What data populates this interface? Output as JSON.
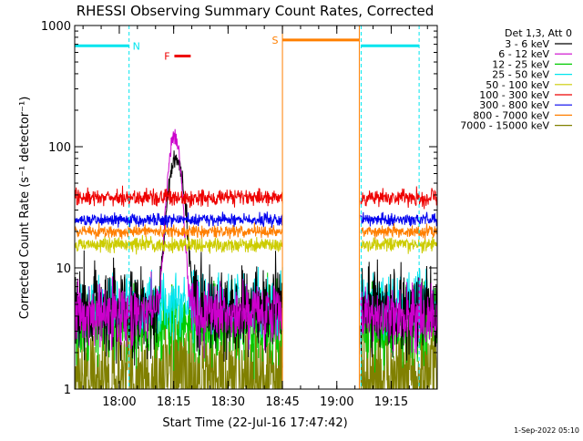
{
  "chart_data": {
    "type": "line",
    "title": "RHESSI Observing Summary Count Rates, Corrected",
    "xlabel": "Start Time (22-Jul-16 17:47:42)",
    "ylabel": "Corrected Count Rate (s⁻¹ detector⁻¹)",
    "yscale": "log",
    "ylim": [
      1,
      1000
    ],
    "xlim_minutes_after_start": [
      0,
      100
    ],
    "x_ticks": [
      "18:00",
      "18:15",
      "18:30",
      "18:45",
      "19:00",
      "19:15"
    ],
    "y_ticks": [
      "1",
      "10",
      "100",
      "1000"
    ],
    "grid": false,
    "legend_header": "Det 1,3, Att 0",
    "legend_position": "top-right",
    "footer_date": "1-Sep-2022 05:10",
    "gap_minutes": [
      [
        57.3,
        78.9
      ]
    ],
    "series": [
      {
        "name": "3 - 6 keV",
        "color": "#000000",
        "base": 4.5,
        "noise": 0.35,
        "peak": {
          "t": 28,
          "value": 80,
          "width": 2.5
        }
      },
      {
        "name": "6 - 12 keV",
        "color": "#cc00cc",
        "base": 4.2,
        "noise": 0.25,
        "peak": {
          "t": 27.5,
          "value": 125,
          "width": 2.0
        }
      },
      {
        "name": "12 - 25 keV",
        "color": "#00cc00",
        "base": 3.4,
        "noise": 0.3
      },
      {
        "name": "25 - 50 keV",
        "color": "#00e5ee",
        "base": 5.0,
        "noise": 0.25
      },
      {
        "name": "50 - 100 keV",
        "color": "#cccc00",
        "base": 15.5,
        "noise": 0.06
      },
      {
        "name": "100 - 300 keV",
        "color": "#ee0000",
        "base": 38,
        "noise": 0.07
      },
      {
        "name": "300 - 800 keV",
        "color": "#0000ee",
        "base": 25,
        "noise": 0.05
      },
      {
        "name": "800 - 7000 keV",
        "color": "#ff7f00",
        "base": 20,
        "noise": 0.05
      },
      {
        "name": "7000 - 15000 keV",
        "color": "#808000",
        "base": 1.2,
        "noise": 0.55
      }
    ],
    "annotations": [
      {
        "label": "N",
        "color": "#00e5ee",
        "value": 680,
        "segments": [
          [
            0,
            15
          ],
          [
            79,
            95
          ]
        ]
      },
      {
        "label": "F",
        "color": "#ee0000",
        "value": 560,
        "segments": [
          [
            27.5,
            32
          ]
        ]
      },
      {
        "label": "S",
        "color": "#ff7f00",
        "value": 760,
        "segments": [
          [
            57.3,
            78.5
          ]
        ]
      }
    ],
    "markers": [
      {
        "color": "#00e5ee",
        "style": "dashed",
        "x": 15
      },
      {
        "color": "#00e5ee",
        "style": "dashed",
        "x": 79
      },
      {
        "color": "#00e5ee",
        "style": "dashed",
        "x": 95
      },
      {
        "color": "#ff7f00",
        "style": "solid",
        "x": 57.3
      },
      {
        "color": "#ff7f00",
        "style": "solid",
        "x": 78.5
      }
    ]
  }
}
